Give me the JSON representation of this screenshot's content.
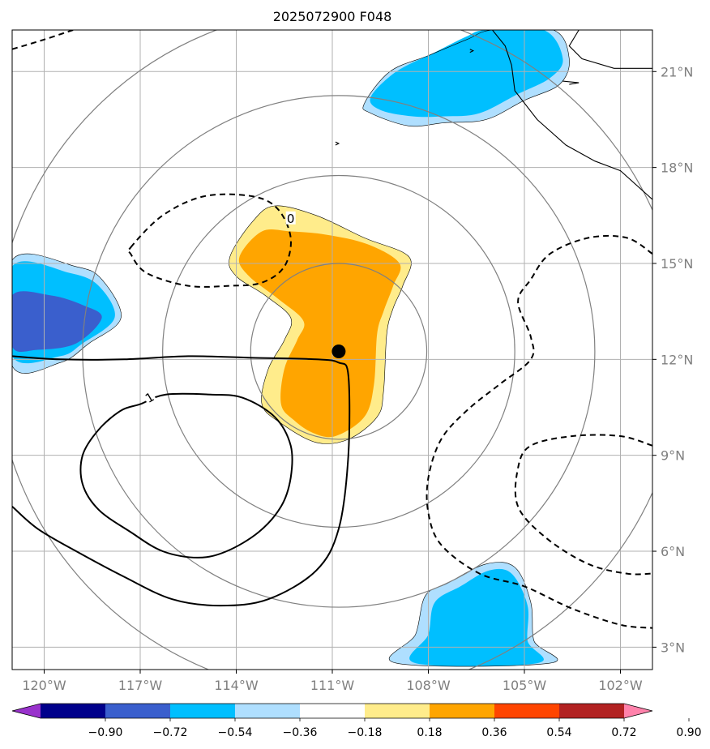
{
  "chart_data": {
    "type": "contour map",
    "title": "2025072900 F048",
    "xlabel": "",
    "ylabel": "",
    "xlim": [
      -121,
      -101
    ],
    "ylim": [
      2.3,
      22.3
    ],
    "x_ticks": [
      -120,
      -117,
      -114,
      -111,
      -108,
      -105,
      -102
    ],
    "x_tick_labels": [
      "120°W",
      "117°W",
      "114°W",
      "111°W",
      "108°W",
      "105°W",
      "102°W"
    ],
    "y_ticks": [
      3,
      6,
      9,
      12,
      15,
      18,
      21
    ],
    "y_tick_labels": [
      "3°N",
      "6°N",
      "9°N",
      "12°N",
      "15°N",
      "18°N",
      "21°N"
    ],
    "grid": true,
    "colors": {
      "grid": "#b0b0b0",
      "tick_label": "#7f7f7f",
      "range_rings": "#808080",
      "coast": "#000000"
    },
    "center_marker": {
      "lon": -110.8,
      "lat": 12.25,
      "symbol": "filled circle"
    },
    "range_rings": {
      "center": [
        -110.8,
        12.25
      ],
      "radii_deg": [
        2.75,
        5.5,
        8.0,
        10.75
      ]
    },
    "colorbar": {
      "orientation": "horizontal",
      "extend": "both",
      "levels": [
        -0.9,
        -0.72,
        -0.54,
        -0.36,
        -0.18,
        0.18,
        0.36,
        0.54,
        0.72,
        0.9
      ],
      "tick_labels": [
        "−0.90",
        "−0.72",
        "−0.54",
        "−0.36",
        "−0.18",
        "0.18",
        "0.36",
        "0.54",
        "0.72",
        "0.90"
      ],
      "colors": [
        "#9932cc",
        "#00008b",
        "#3a5fcd",
        "#00bfff",
        "#afdfff",
        "#ffffff",
        "#ffec8b",
        "#ffa500",
        "#ff4500",
        "#b22222",
        "#ff82ab"
      ]
    },
    "filled_regions": [
      {
        "name": "positive-anomaly-central",
        "levels": [
          0.18,
          0.54
        ],
        "colors": [
          "#ffec8b",
          "#ffa500"
        ],
        "outer": [
          [
            -114.2,
            15.2
          ],
          [
            -113.5,
            16.3
          ],
          [
            -112.8,
            16.8
          ],
          [
            -111.5,
            16.5
          ],
          [
            -110.0,
            15.8
          ],
          [
            -108.6,
            15.2
          ],
          [
            -108.8,
            14.3
          ],
          [
            -109.1,
            13.6
          ],
          [
            -109.3,
            12.8
          ],
          [
            -109.4,
            11.0
          ],
          [
            -109.6,
            10.2
          ],
          [
            -110.5,
            9.5
          ],
          [
            -111.5,
            9.4
          ],
          [
            -112.6,
            10.0
          ],
          [
            -113.2,
            10.6
          ],
          [
            -113.0,
            11.7
          ],
          [
            -112.5,
            12.6
          ],
          [
            -112.3,
            13.3
          ],
          [
            -113.1,
            14.0
          ],
          [
            -114.0,
            14.6
          ]
        ],
        "inner": [
          [
            -113.9,
            15.2
          ],
          [
            -113.2,
            16.0
          ],
          [
            -112.3,
            16.0
          ],
          [
            -111.2,
            15.9
          ],
          [
            -109.9,
            15.6
          ],
          [
            -108.9,
            15.0
          ],
          [
            -109.1,
            14.3
          ],
          [
            -109.4,
            13.5
          ],
          [
            -109.6,
            12.8
          ],
          [
            -109.7,
            11.2
          ],
          [
            -110.0,
            10.2
          ],
          [
            -110.9,
            9.6
          ],
          [
            -111.6,
            9.7
          ],
          [
            -112.2,
            10.1
          ],
          [
            -112.6,
            10.6
          ],
          [
            -112.5,
            11.7
          ],
          [
            -112.1,
            12.6
          ],
          [
            -111.9,
            13.2
          ],
          [
            -112.7,
            13.9
          ],
          [
            -113.6,
            14.6
          ]
        ]
      },
      {
        "name": "negative-anomaly-west",
        "levels": [
          -0.18,
          -0.36,
          -0.54
        ],
        "colors": [
          "#afdfff",
          "#00bfff",
          "#3a5fcd"
        ],
        "outer": [
          [
            -121,
            15.1
          ],
          [
            -119.0,
            14.9
          ],
          [
            -118.2,
            14.5
          ],
          [
            -117.6,
            13.3
          ],
          [
            -118.6,
            12.5
          ],
          [
            -119.5,
            11.9
          ],
          [
            -121,
            11.8
          ]
        ],
        "mid": [
          [
            -121,
            14.9
          ],
          [
            -119.2,
            14.7
          ],
          [
            -118.3,
            14.3
          ],
          [
            -117.8,
            13.3
          ],
          [
            -118.8,
            12.5
          ],
          [
            -119.5,
            12.1
          ],
          [
            -121,
            12.1
          ]
        ],
        "inner": [
          [
            -121,
            14.0
          ],
          [
            -119.8,
            14.0
          ],
          [
            -118.8,
            13.7
          ],
          [
            -118.2,
            13.3
          ],
          [
            -119.0,
            12.5
          ],
          [
            -120.2,
            12.3
          ],
          [
            -121,
            12.4
          ]
        ]
      },
      {
        "name": "negative-anomaly-northeast",
        "levels": [
          -0.18,
          -0.36
        ],
        "colors": [
          "#afdfff",
          "#00bfff"
        ],
        "outer": [
          [
            -110.0,
            20.0
          ],
          [
            -109.2,
            21.0
          ],
          [
            -108.0,
            21.5
          ],
          [
            -106.8,
            22.0
          ],
          [
            -106.0,
            22.3
          ],
          [
            -104.1,
            22.3
          ],
          [
            -103.6,
            21.4
          ],
          [
            -103.9,
            20.6
          ],
          [
            -105.0,
            20.1
          ],
          [
            -106.2,
            19.5
          ],
          [
            -107.5,
            19.4
          ],
          [
            -108.6,
            19.3
          ],
          [
            -109.8,
            19.7
          ]
        ],
        "inner": [
          [
            -109.8,
            20.2
          ],
          [
            -109.0,
            21.0
          ],
          [
            -107.8,
            21.6
          ],
          [
            -106.8,
            22.1
          ],
          [
            -106.2,
            22.3
          ],
          [
            -104.4,
            22.3
          ],
          [
            -103.8,
            21.4
          ],
          [
            -104.2,
            20.8
          ],
          [
            -105.2,
            20.3
          ],
          [
            -106.4,
            19.7
          ],
          [
            -107.5,
            19.6
          ],
          [
            -108.5,
            19.6
          ],
          [
            -109.5,
            19.8
          ]
        ]
      },
      {
        "name": "negative-anomaly-south",
        "levels": [
          -0.18,
          -0.36
        ],
        "colors": [
          "#afdfff",
          "#00bfff"
        ],
        "outer": [
          [
            -109.0,
            2.5
          ],
          [
            -108.4,
            3.4
          ],
          [
            -108.1,
            4.6
          ],
          [
            -107.4,
            5.0
          ],
          [
            -106.2,
            5.6
          ],
          [
            -105.3,
            5.5
          ],
          [
            -104.8,
            4.4
          ],
          [
            -104.7,
            3.2
          ],
          [
            -104.2,
            2.5
          ]
        ],
        "inner": [
          [
            -108.4,
            2.5
          ],
          [
            -108.0,
            3.4
          ],
          [
            -107.8,
            4.4
          ],
          [
            -107.0,
            4.9
          ],
          [
            -106.1,
            5.4
          ],
          [
            -105.4,
            5.3
          ],
          [
            -104.9,
            4.3
          ],
          [
            -104.9,
            3.2
          ],
          [
            -104.6,
            2.5
          ]
        ]
      }
    ],
    "contours": [
      {
        "level": 1,
        "style": "solid",
        "label": "1",
        "points": [
          [
            -121,
            12.1
          ],
          [
            -119.5,
            12.0
          ],
          [
            -117.5,
            12.0
          ],
          [
            -115.5,
            12.1
          ],
          [
            -113.5,
            12.05
          ],
          [
            -111.5,
            12.0
          ],
          [
            -110.8,
            11.9
          ],
          [
            -110.5,
            11.5
          ],
          [
            -110.5,
            9.0
          ],
          [
            -110.8,
            6.7
          ],
          [
            -111.5,
            5.4
          ],
          [
            -113.0,
            4.5
          ],
          [
            -114.5,
            4.3
          ],
          [
            -116.0,
            4.5
          ],
          [
            -117.5,
            5.2
          ],
          [
            -119.0,
            6.0
          ],
          [
            -120.2,
            6.7
          ],
          [
            -121,
            7.4
          ]
        ]
      },
      {
        "level": 1,
        "style": "solid",
        "points": [
          [
            -117.0,
            10.6
          ],
          [
            -116.2,
            10.9
          ],
          [
            -114.8,
            10.9
          ],
          [
            -113.8,
            10.8
          ],
          [
            -112.8,
            10.2
          ],
          [
            -112.3,
            9.3
          ],
          [
            -112.3,
            8.3
          ],
          [
            -112.6,
            7.4
          ],
          [
            -113.3,
            6.6
          ],
          [
            -114.3,
            6.0
          ],
          [
            -115.2,
            5.8
          ],
          [
            -116.3,
            6.0
          ],
          [
            -117.3,
            6.6
          ],
          [
            -118.3,
            7.3
          ],
          [
            -118.8,
            8.1
          ],
          [
            -118.8,
            9.0
          ],
          [
            -118.3,
            9.8
          ],
          [
            -117.6,
            10.4
          ]
        ]
      },
      {
        "level": 0,
        "style": "dashed",
        "label": "0",
        "points": [
          [
            -117.3,
            15.5
          ],
          [
            -116.3,
            16.5
          ],
          [
            -115.0,
            17.1
          ],
          [
            -113.5,
            17.1
          ],
          [
            -112.7,
            16.7
          ],
          [
            -112.3,
            15.8
          ],
          [
            -112.5,
            14.9
          ],
          [
            -113.2,
            14.4
          ],
          [
            -114.2,
            14.3
          ],
          [
            -115.5,
            14.3
          ],
          [
            -116.8,
            14.7
          ],
          [
            -117.3,
            15.3
          ]
        ]
      },
      {
        "level": -1,
        "style": "dashed",
        "points": [
          [
            -101.0,
            15.3
          ],
          [
            -101.8,
            15.8
          ],
          [
            -103.0,
            15.8
          ],
          [
            -104.2,
            15.3
          ],
          [
            -104.8,
            14.5
          ],
          [
            -105.2,
            13.8
          ],
          [
            -104.8,
            12.7
          ],
          [
            -104.8,
            12.0
          ],
          [
            -105.8,
            11.2
          ],
          [
            -106.8,
            10.4
          ],
          [
            -107.6,
            9.5
          ],
          [
            -108.0,
            8.3
          ],
          [
            -108.0,
            7.2
          ],
          [
            -107.6,
            6.2
          ],
          [
            -106.4,
            5.3
          ],
          [
            -105.0,
            4.9
          ],
          [
            -103.5,
            4.2
          ],
          [
            -102.0,
            3.7
          ],
          [
            -101.0,
            3.6
          ]
        ]
      },
      {
        "level": -1,
        "style": "dashed",
        "points": [
          [
            -101.0,
            9.3
          ],
          [
            -102.0,
            9.6
          ],
          [
            -103.5,
            9.6
          ],
          [
            -104.8,
            9.3
          ],
          [
            -105.2,
            8.6
          ],
          [
            -105.2,
            7.4
          ],
          [
            -104.3,
            6.4
          ],
          [
            -103.0,
            5.6
          ],
          [
            -101.8,
            5.3
          ],
          [
            -101.0,
            5.3
          ]
        ]
      },
      {
        "level": -1,
        "style": "dashed",
        "points": [
          [
            -121,
            21.7
          ],
          [
            -120.0,
            22.0
          ],
          [
            -119.1,
            22.3
          ]
        ]
      }
    ],
    "coastline": [
      [
        [
          -106.0,
          22.3
        ],
        [
          -105.6,
          21.8
        ],
        [
          -105.4,
          21.2
        ],
        [
          -105.3,
          20.4
        ],
        [
          -104.6,
          19.5
        ],
        [
          -103.7,
          18.7
        ],
        [
          -102.8,
          18.2
        ],
        [
          -102.0,
          17.9
        ],
        [
          -101.0,
          17.0
        ]
      ],
      [
        [
          -103.3,
          22.3
        ],
        [
          -103.6,
          21.8
        ],
        [
          -103.2,
          21.4
        ],
        [
          -102.2,
          21.1
        ],
        [
          -101.0,
          21.1
        ]
      ],
      [
        [
          -103.8,
          20.7
        ],
        [
          -103.3,
          20.65
        ],
        [
          -103.6,
          20.6
        ]
      ],
      [
        [
          -110.9,
          18.8
        ],
        [
          -110.8,
          18.75
        ],
        [
          -110.9,
          18.7
        ]
      ],
      [
        [
          -106.7,
          21.7
        ],
        [
          -106.6,
          21.65
        ],
        [
          -106.7,
          21.6
        ]
      ]
    ]
  }
}
